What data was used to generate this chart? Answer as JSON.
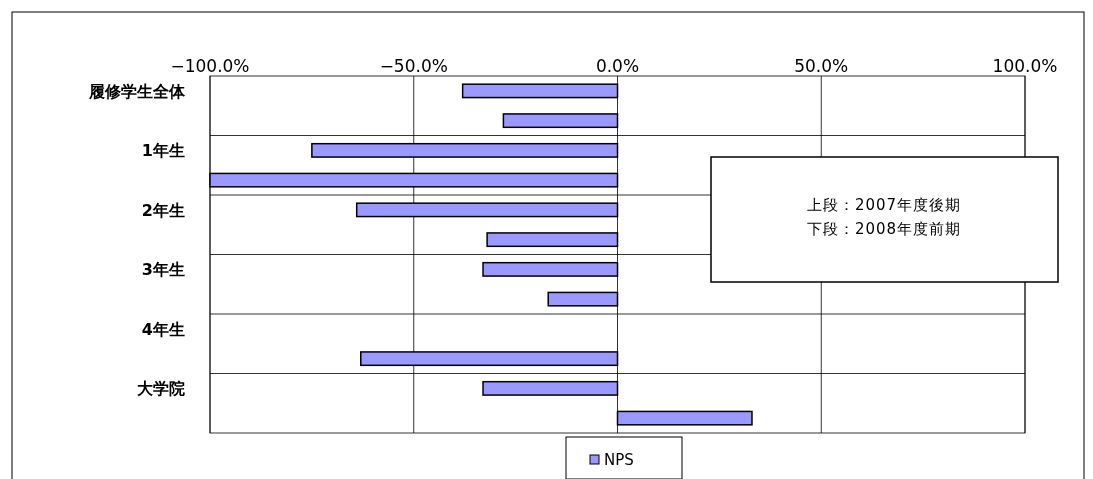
{
  "chart_data": {
    "type": "bar",
    "orientation": "horizontal",
    "categories": [
      "履修学生全体",
      null,
      "1年生",
      null,
      "2年生",
      null,
      "3年生",
      null,
      "4年生",
      null,
      "大学院",
      null
    ],
    "series": [
      {
        "name": "NPS",
        "color": "#9999ff",
        "values": [
          -38,
          -28,
          -75,
          -100,
          -64,
          -32,
          -33,
          -17,
          null,
          -63,
          -33,
          33
        ]
      }
    ],
    "xlim": [
      -100,
      100
    ],
    "xticks": [
      {
        "value": -100,
        "label": "−100.0%"
      },
      {
        "value": -50,
        "label": "−50.0%"
      },
      {
        "value": 0,
        "label": "0.0%"
      },
      {
        "value": 50,
        "label": "50.0%"
      },
      {
        "value": 100,
        "label": "100.0%"
      }
    ],
    "grid": true,
    "legend": "bottom",
    "annotations": [
      "上段：2007年度後期",
      "下段：2008年度前期"
    ]
  }
}
